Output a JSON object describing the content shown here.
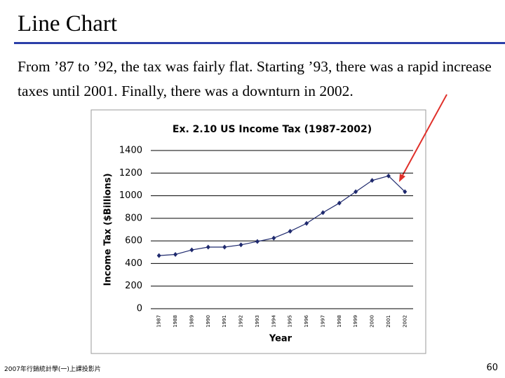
{
  "slide": {
    "title": "Line Chart",
    "text": "From ’87 to ’92, the tax was fairly flat. Starting ’93, there was a rapid increase taxes until 2001. Finally, there was a downturn in 2002.",
    "footer": "2007年行銷統計學(一)上課投影片",
    "page": 60
  },
  "chart_data": {
    "type": "line",
    "title": "Ex. 2.10 US Income Tax (1987-2002)",
    "x_label": "Year",
    "y_label": "Income Tax ($Billions)",
    "categories": [
      "1987",
      "1988",
      "1989",
      "1990",
      "1991",
      "1992",
      "1993",
      "1994",
      "1995",
      "1996",
      "1997",
      "1998",
      "1999",
      "2000",
      "2001",
      "2002"
    ],
    "series": [
      {
        "name": "Income Tax",
        "color": "#1f2a6e",
        "values": [
          470,
          480,
          520,
          545,
          545,
          565,
          595,
          625,
          685,
          755,
          850,
          935,
          1035,
          1135,
          1175,
          1035
        ]
      }
    ],
    "ylim": [
      0,
      1400
    ],
    "yticks": [
      0,
      200,
      400,
      600,
      800,
      1000,
      1200,
      1400
    ],
    "grid": true
  }
}
